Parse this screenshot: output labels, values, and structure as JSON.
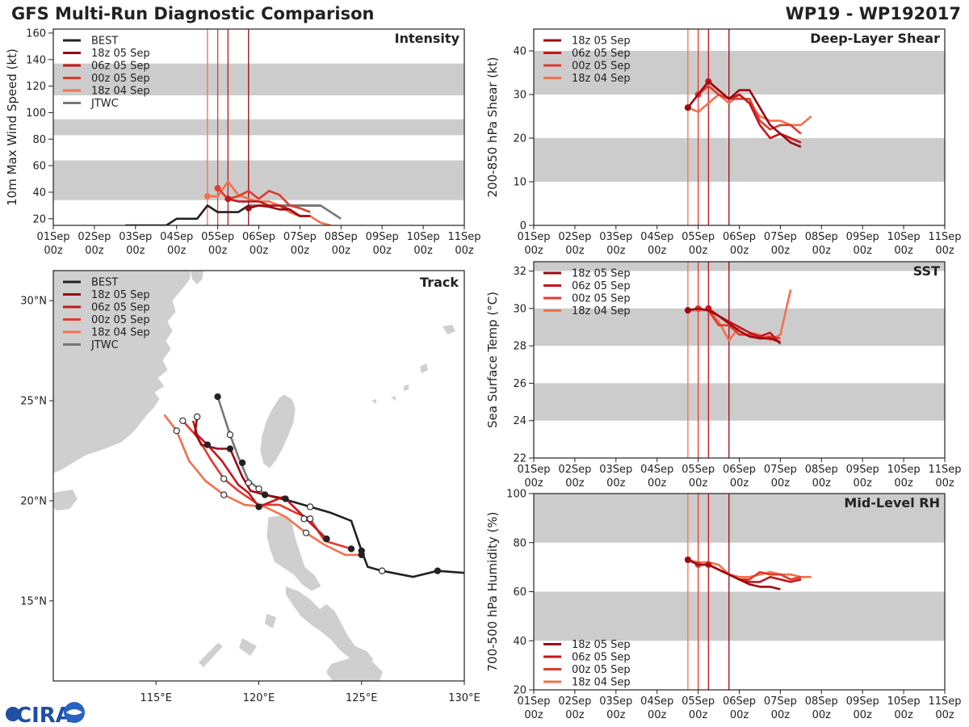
{
  "header": {
    "title": "GFS Multi-Run Diagnostic Comparison",
    "storm_id": "WP19 - WP192017",
    "logo_text": "CIRA"
  },
  "colors": {
    "BEST": "#222222",
    "18z 05 Sep": "#9a0a12",
    "06z 05 Sep": "#c4171c",
    "00z 05 Sep": "#e23a2e",
    "18z 04 Sep": "#f2714f",
    "JTWC": "#777777",
    "shade": "#cccccc",
    "land": "#cfcfcf"
  },
  "time_axis": {
    "labels": [
      "01Sep\n00z",
      "02Sep\n00z",
      "03Sep\n00z",
      "04Sep\n00z",
      "05Sep\n00z",
      "06Sep\n00z",
      "07Sep\n00z",
      "08Sep\n00z",
      "09Sep\n00z",
      "10Sep\n00z",
      "11Sep\n00z"
    ]
  },
  "init_times": [
    {
      "run": "18z 04 Sep",
      "day": 4.75
    },
    {
      "run": "00z 05 Sep",
      "day": 5.0
    },
    {
      "run": "06z 05 Sep",
      "day": 5.25
    },
    {
      "run": "18z 05 Sep",
      "day": 5.75
    }
  ],
  "chart_data": [
    {
      "id": "intensity",
      "type": "line",
      "title": "Intensity",
      "ylabel": "10m Max Wind Speed (kt)",
      "xlim": [
        1,
        11
      ],
      "ylim": [
        15,
        163
      ],
      "yticks": [
        20,
        40,
        60,
        80,
        100,
        120,
        140,
        160
      ],
      "bands": [
        [
          34,
          64
        ],
        [
          83,
          95
        ],
        [
          113,
          137
        ]
      ],
      "legend": [
        "BEST",
        "18z 05 Sep",
        "06z 05 Sep",
        "00z 05 Sep",
        "18z 04 Sep",
        "JTWC"
      ],
      "legend_position": "top-left",
      "series": [
        {
          "name": "BEST",
          "x": [
            2.75,
            3,
            3.25,
            3.5,
            3.75,
            4,
            4.25,
            4.5,
            4.75,
            5,
            5.25,
            5.5,
            5.75,
            6,
            6.25,
            6.5,
            6.75,
            7,
            7.25,
            7.5
          ],
          "y": [
            15,
            15,
            15,
            15,
            15,
            20,
            20,
            20,
            30,
            25,
            25,
            25,
            30,
            30,
            30,
            30,
            30,
            30,
            30,
            30
          ]
        },
        {
          "name": "JTWC",
          "x": [
            5.75,
            6,
            6.5,
            7,
            7.5,
            8
          ],
          "y": [
            30,
            30,
            30,
            30,
            30,
            20
          ]
        },
        {
          "name": "18z 04 Sep",
          "x": [
            4.75,
            5,
            5.25,
            5.5,
            5.75,
            6,
            6.25,
            6.5,
            6.75,
            7,
            7.25,
            7.5,
            7.75
          ],
          "y": [
            37,
            37,
            48,
            38,
            35,
            33,
            33,
            30,
            25,
            22,
            22,
            17,
            15
          ]
        },
        {
          "name": "00z 05 Sep",
          "x": [
            5,
            5.25,
            5.5,
            5.75,
            6,
            6.25,
            6.5,
            6.75,
            7,
            7.25
          ],
          "y": [
            43,
            35,
            37,
            41,
            35,
            41,
            38,
            30,
            28,
            25
          ]
        },
        {
          "name": "06z 05 Sep",
          "x": [
            5.25,
            5.5,
            5.75,
            6,
            6.25,
            6.5,
            6.75,
            7,
            7.25
          ],
          "y": [
            35,
            33,
            33,
            33,
            30,
            30,
            27,
            22,
            22
          ]
        },
        {
          "name": "18z 05 Sep",
          "x": [
            5.75,
            6,
            6.25,
            6.5,
            6.75,
            7,
            7.25
          ],
          "y": [
            28,
            30,
            29,
            27,
            27,
            22,
            22
          ]
        }
      ]
    },
    {
      "id": "shear",
      "type": "line",
      "title": "Deep-Layer Shear",
      "ylabel": "200-850 hPa Shear (kt)",
      "xlim": [
        1,
        11
      ],
      "ylim": [
        0,
        45
      ],
      "yticks": [
        0,
        10,
        20,
        30,
        40
      ],
      "bands": [
        [
          10,
          20
        ],
        [
          30,
          40
        ]
      ],
      "legend": [
        "18z 05 Sep",
        "06z 05 Sep",
        "00z 05 Sep",
        "18z 04 Sep"
      ],
      "legend_position": "top-left",
      "series": [
        {
          "name": "18z 04 Sep",
          "x": [
            4.75,
            5,
            5.25,
            5.5,
            5.75,
            6,
            6.25,
            6.5,
            6.75,
            7,
            7.25,
            7.5,
            7.75
          ],
          "y": [
            27,
            26,
            28,
            30,
            28,
            30,
            28,
            25,
            24,
            24,
            23,
            23,
            25
          ]
        },
        {
          "name": "00z 05 Sep",
          "x": [
            5,
            5.25,
            5.5,
            5.75,
            6,
            6.25,
            6.5,
            6.75,
            7,
            7.25,
            7.5
          ],
          "y": [
            30,
            32,
            30,
            29,
            29,
            29,
            24,
            22,
            23,
            23,
            21
          ]
        },
        {
          "name": "06z 05 Sep",
          "x": [
            5.25,
            5.5,
            5.75,
            6,
            6.25,
            6.5,
            6.75,
            7,
            7.25,
            7.5
          ],
          "y": [
            33,
            31,
            29,
            30,
            28,
            23,
            20,
            21,
            20,
            19
          ]
        },
        {
          "name": "18z 05 Sep",
          "x": [
            4.75,
            5,
            5.25,
            5.5,
            5.75,
            6,
            6.25,
            6.5,
            6.75,
            7,
            7.25,
            7.5
          ],
          "y": [
            27,
            30,
            33,
            31,
            29,
            31,
            31,
            27,
            23,
            21,
            19,
            18
          ]
        }
      ]
    },
    {
      "id": "sst",
      "type": "line",
      "title": "SST",
      "ylabel": "Sea Surface Temp (°C)",
      "xlim": [
        1,
        11
      ],
      "ylim": [
        22,
        32.5
      ],
      "yticks": [
        22,
        24,
        26,
        28,
        30,
        32
      ],
      "bands": [
        [
          24,
          26
        ],
        [
          28,
          30
        ],
        [
          32,
          32.5
        ]
      ],
      "legend": [
        "18z 05 Sep",
        "06z 05 Sep",
        "00z 05 Sep",
        "18z 04 Sep"
      ],
      "legend_position": "top-left",
      "series": [
        {
          "name": "18z 04 Sep",
          "x": [
            4.75,
            5,
            5.25,
            5.5,
            5.75,
            6,
            6.25,
            6.5,
            6.75,
            7,
            7.25
          ],
          "y": [
            29.9,
            29.9,
            29.9,
            29.3,
            28.3,
            29.0,
            28.7,
            28.6,
            28.3,
            28.6,
            31.0
          ]
        },
        {
          "name": "00z 05 Sep",
          "x": [
            5,
            5.25,
            5.5,
            5.75,
            6,
            6.25,
            6.5,
            6.75,
            7
          ],
          "y": [
            30.0,
            29.9,
            29.1,
            29.1,
            28.6,
            28.6,
            28.4,
            28.5,
            28.4
          ]
        },
        {
          "name": "06z 05 Sep",
          "x": [
            5.25,
            5.5,
            5.75,
            6,
            6.25,
            6.5,
            6.75,
            7
          ],
          "y": [
            30.0,
            29.6,
            29.3,
            29.0,
            28.7,
            28.5,
            28.7,
            28.1
          ]
        },
        {
          "name": "18z 05 Sep",
          "x": [
            4.75,
            5,
            5.25,
            5.5,
            5.75,
            6,
            6.25,
            6.5,
            6.75,
            7
          ],
          "y": [
            29.9,
            30.0,
            29.9,
            29.6,
            29.2,
            28.8,
            28.5,
            28.4,
            28.4,
            28.2
          ]
        }
      ]
    },
    {
      "id": "rh",
      "type": "line",
      "title": "Mid-Level RH",
      "ylabel": "700-500 hPa Humidity (%)",
      "xlim": [
        1,
        11
      ],
      "ylim": [
        20,
        100
      ],
      "yticks": [
        20,
        40,
        60,
        80,
        100
      ],
      "bands": [
        [
          40,
          60
        ],
        [
          80,
          100
        ]
      ],
      "legend": [
        "18z 05 Sep",
        "06z 05 Sep",
        "00z 05 Sep",
        "18z 04 Sep"
      ],
      "legend_position": "bottom-left",
      "series": [
        {
          "name": "18z 04 Sep",
          "x": [
            4.75,
            5,
            5.25,
            5.5,
            5.75,
            6,
            6.25,
            6.5,
            6.75,
            7,
            7.25,
            7.5,
            7.75
          ],
          "y": [
            73,
            72,
            72,
            71,
            67,
            66,
            66,
            67,
            68,
            67,
            67,
            66,
            66
          ]
        },
        {
          "name": "00z 05 Sep",
          "x": [
            5,
            5.25,
            5.5,
            5.75,
            6,
            6.25,
            6.5,
            6.75,
            7,
            7.25,
            7.5
          ],
          "y": [
            71,
            71,
            69,
            67,
            65,
            65,
            68,
            67,
            67,
            65,
            66
          ]
        },
        {
          "name": "06z 05 Sep",
          "x": [
            5.25,
            5.5,
            5.75,
            6,
            6.25,
            6.5,
            6.75,
            7,
            7.25,
            7.5
          ],
          "y": [
            71,
            69,
            67,
            65,
            64,
            64,
            66,
            65,
            64,
            65
          ]
        },
        {
          "name": "18z 05 Sep",
          "x": [
            4.75,
            5,
            5.25,
            5.5,
            5.75,
            6,
            6.25,
            6.5,
            6.75,
            7
          ],
          "y": [
            73,
            71,
            71,
            69,
            67,
            65,
            63,
            62,
            62,
            61
          ]
        }
      ]
    },
    {
      "id": "track",
      "type": "scatter",
      "title": "Track",
      "xlim": [
        110,
        130
      ],
      "ylim": [
        11,
        31.5
      ],
      "xticks": [
        115,
        120,
        125,
        130
      ],
      "xtick_labels": [
        "115°E",
        "120°E",
        "125°E",
        "130°E"
      ],
      "yticks": [
        15,
        20,
        25,
        30
      ],
      "ytick_labels": [
        "15°N",
        "20°N",
        "25°N",
        "30°N"
      ],
      "legend": [
        "BEST",
        "18z 05 Sep",
        "06z 05 Sep",
        "00z 05 Sep",
        "18z 04 Sep",
        "JTWC"
      ],
      "legend_position": "top-left",
      "series": [
        {
          "name": "BEST",
          "lon": [
            130,
            128.7,
            127.5,
            126,
            125.3,
            125,
            124.5,
            123.5,
            122.5,
            121.5,
            120.3
          ],
          "lat": [
            16.4,
            16.5,
            16.2,
            16.5,
            16.7,
            17.5,
            19.0,
            19.4,
            19.7,
            20.0,
            20.3
          ],
          "markers": [
            [
              128.7,
              16.5,
              "filled"
            ],
            [
              126,
              16.5,
              "open"
            ],
            [
              125,
              17.5,
              "filled"
            ],
            [
              122.5,
              19.7,
              "open"
            ],
            [
              120.3,
              20.3,
              "filled"
            ]
          ]
        },
        {
          "name": "JTWC",
          "lon": [
            120.3,
            120.0,
            119.5,
            119.0,
            118.6,
            118.0
          ],
          "lat": [
            20.3,
            20.6,
            21.0,
            22.2,
            23.3,
            25.2
          ],
          "markers": [
            [
              120.0,
              20.6,
              "open"
            ],
            [
              119.5,
              20.9,
              "open"
            ],
            [
              118.6,
              23.3,
              "open"
            ],
            [
              118.0,
              25.2,
              "filled"
            ]
          ]
        },
        {
          "name": "18z 04 Sep",
          "lon": [
            125,
            124.2,
            123.2,
            122.3,
            121.3,
            120.3,
            119.3,
            118.3,
            117.4,
            116.6,
            116.0,
            115.4
          ],
          "lat": [
            17.3,
            17.3,
            17.8,
            18.4,
            19.2,
            19.7,
            19.8,
            20.3,
            21.0,
            22.0,
            23.5,
            24.3
          ],
          "markers": [
            [
              125,
              17.3,
              "filled"
            ],
            [
              122.3,
              18.4,
              "open"
            ],
            [
              118.3,
              20.3,
              "open"
            ],
            [
              116.0,
              23.5,
              "open"
            ]
          ]
        },
        {
          "name": "00z 05 Sep",
          "lon": [
            124.5,
            123.2,
            122.5,
            121.8,
            121.0,
            120.0,
            119.0,
            118.3,
            117.7,
            117.0,
            116.3
          ],
          "lat": [
            17.6,
            18.0,
            19.1,
            19.4,
            19.8,
            19.8,
            20.5,
            21.1,
            22.0,
            23.2,
            24.0
          ],
          "markers": [
            [
              124.5,
              17.6,
              "filled"
            ],
            [
              122.5,
              19.1,
              "open"
            ],
            [
              118.3,
              21.1,
              "open"
            ],
            [
              116.3,
              24.0,
              "open"
            ]
          ]
        },
        {
          "name": "06z 05 Sep",
          "lon": [
            123.3,
            122.0,
            121.2,
            120.0,
            119.5,
            119.0,
            118.2,
            117.5,
            117.0,
            116.8
          ],
          "lat": [
            18.1,
            19.4,
            20.2,
            19.7,
            20.4,
            20.8,
            22.0,
            22.8,
            23.3,
            24.0
          ],
          "markers": [
            [
              123.3,
              18.1,
              "filled"
            ],
            [
              122.2,
              19.1,
              "open"
            ],
            [
              120.0,
              19.7,
              "filled"
            ],
            [
              117.5,
              22.8,
              "filled"
            ]
          ]
        },
        {
          "name": "18z 05 Sep",
          "lon": [
            121.3,
            120.3,
            119.6,
            119.2,
            118.9,
            118.6,
            118.0,
            117.2,
            116.9,
            117.0
          ],
          "lat": [
            20.1,
            20.3,
            20.5,
            21.2,
            21.9,
            22.6,
            22.6,
            22.8,
            23.4,
            24.2
          ],
          "markers": [
            [
              121.3,
              20.1,
              "filled"
            ],
            [
              119.2,
              21.9,
              "filled"
            ],
            [
              118.6,
              22.6,
              "filled"
            ],
            [
              117.0,
              24.2,
              "open"
            ]
          ]
        }
      ]
    }
  ]
}
